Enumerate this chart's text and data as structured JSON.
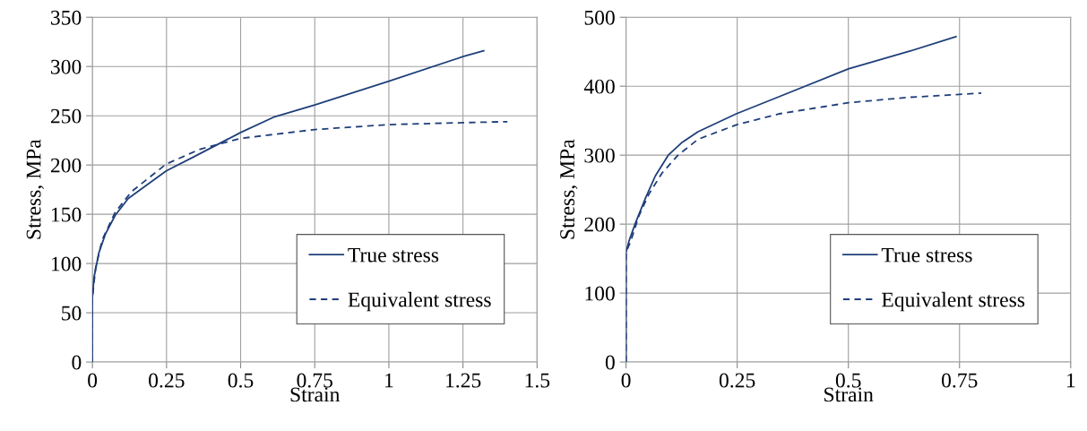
{
  "chart_data": [
    {
      "type": "line",
      "xlabel": "Strain",
      "ylabel": "Stress, MPa",
      "xlim": [
        0,
        1.5
      ],
      "ylim": [
        0,
        350
      ],
      "xticks": [
        0,
        0.25,
        0.5,
        0.75,
        1,
        1.25,
        1.5
      ],
      "yticks": [
        0,
        50,
        100,
        150,
        200,
        250,
        300,
        350
      ],
      "grid": true,
      "legend": "lower right",
      "marker": "none",
      "series": [
        {
          "name": "True stress",
          "color": "#1f3f7a",
          "line_style": "solid",
          "x": [
            0,
            0,
            0.0055,
            0.022,
            0.044,
            0.077,
            0.121,
            0.176,
            0.249,
            0.34,
            0.5,
            0.615,
            0.75,
            1.0,
            1.25,
            1.32
          ],
          "values": [
            0,
            65,
            86,
            111,
            130,
            149,
            166,
            178,
            194,
            208,
            233,
            249,
            261,
            285,
            310,
            316
          ]
        },
        {
          "name": "Equivalent stress",
          "color": "#1f3f7a",
          "line_style": "dashed",
          "x": [
            0,
            0,
            0.011,
            0.033,
            0.077,
            0.132,
            0.249,
            0.363,
            0.5,
            0.75,
            1.0,
            1.25,
            1.4
          ],
          "values": [
            0,
            65,
            96,
            124,
            152,
            173,
            201,
            216,
            227,
            236,
            241,
            243,
            244
          ]
        }
      ]
    },
    {
      "type": "line",
      "xlabel": "Strain",
      "ylabel": "Stress, MPa",
      "xlim": [
        0,
        1
      ],
      "ylim": [
        0,
        500
      ],
      "xticks": [
        0,
        0.25,
        0.5,
        0.75,
        1
      ],
      "yticks": [
        0,
        100,
        200,
        300,
        400,
        500
      ],
      "grid": true,
      "legend": "lower right",
      "marker": "none",
      "series": [
        {
          "name": "True stress",
          "color": "#1f3f7a",
          "line_style": "solid",
          "x": [
            0,
            0,
            0.007,
            0.022,
            0.044,
            0.066,
            0.095,
            0.125,
            0.162,
            0.248,
            0.345,
            0.5,
            0.639,
            0.742
          ],
          "values": [
            0,
            159,
            176,
            203,
            238,
            270,
            300,
            318,
            334,
            360,
            385,
            425,
            451,
            472
          ]
        },
        {
          "name": "Equivalent stress",
          "color": "#1f3f7a",
          "line_style": "dashed",
          "x": [
            0,
            0,
            0.011,
            0.029,
            0.051,
            0.081,
            0.117,
            0.162,
            0.248,
            0.345,
            0.5,
            0.639,
            0.749,
            0.799
          ],
          "values": [
            0,
            159,
            176,
            212,
            243,
            274,
            300,
            323,
            344,
            360,
            376,
            384,
            388,
            390
          ]
        }
      ]
    }
  ]
}
